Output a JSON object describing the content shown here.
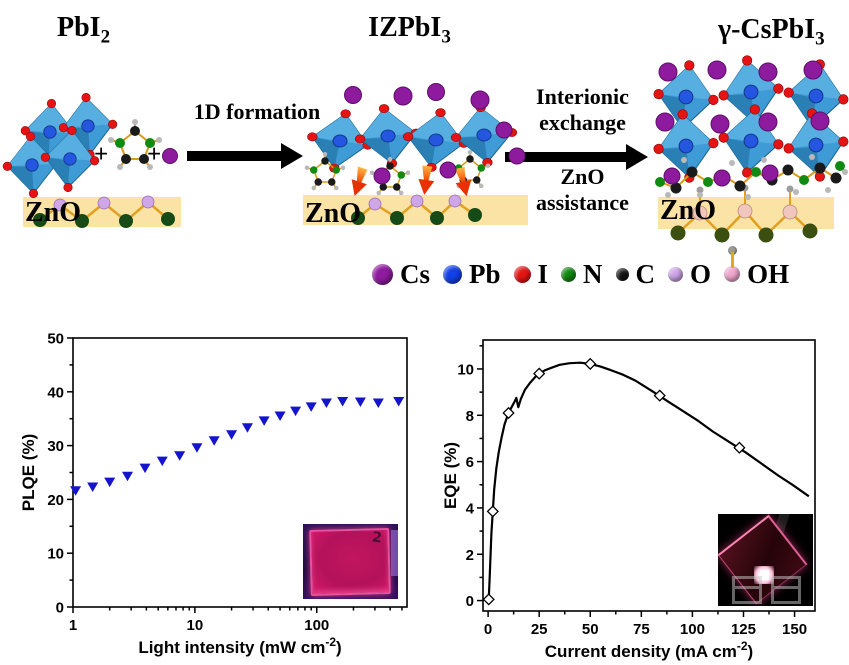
{
  "scheme": {
    "substrate_label": "ZnO",
    "plus": "+",
    "stages": [
      {
        "name": "PbI2",
        "main": "PbI",
        "sub": "2"
      },
      {
        "name": "IZPbI3",
        "main": "IZPbI",
        "sub": "3"
      },
      {
        "name": "gamma-CsPbI3",
        "main": "γ-CsPbI",
        "sub": "3"
      }
    ],
    "arrow1_label": "1D formation",
    "arrow2_label_line1": "Interionic",
    "arrow2_label_line2": "exchange",
    "arrow2_sub_line1": "ZnO",
    "arrow2_sub_line2": "assistance",
    "legend": [
      {
        "label": "Cs",
        "color": "#8e1b9e"
      },
      {
        "label": "Pb",
        "color": "#1340e8"
      },
      {
        "label": "I",
        "color": "#e81414"
      },
      {
        "label": "N",
        "color": "#118a11"
      },
      {
        "label": "C",
        "color": "#161616"
      },
      {
        "label": "O",
        "color": "#cfa6e8"
      },
      {
        "label": "OH",
        "color": "#f2a8cf"
      }
    ],
    "colors": {
      "octahedron": "#3f9bd6",
      "substrate_band": "#fae3a4",
      "bond": "#e0a020",
      "hydrogen": "#b0b0b0",
      "zinc_dark_green": "#164a16",
      "orange_arrow": "#ee3b00"
    }
  },
  "insets": {
    "left_label": "2"
  },
  "chart_data": [
    {
      "type": "scatter",
      "title": "",
      "xlabel": "Light intensity (mW cm^-2)",
      "xlabel_parts": {
        "pre": "Light intensity (mW cm",
        "sup": "-2",
        "post": ")"
      },
      "ylabel": "PLQE (%)",
      "xscale": "log",
      "xlim": [
        1,
        550
      ],
      "ylim": [
        0,
        50
      ],
      "xticks": [
        1,
        10,
        100
      ],
      "yticks": [
        0,
        10,
        20,
        30,
        40,
        50
      ],
      "yminor_step": 5,
      "grid": false,
      "marker": "triangle-down",
      "marker_color": "#1414cc",
      "x": [
        1.05,
        1.45,
        2.0,
        2.8,
        3.9,
        5.4,
        7.5,
        10.4,
        14.4,
        20,
        27,
        37,
        50,
        67,
        90,
        120,
        163,
        228,
        320,
        470
      ],
      "y": [
        21.7,
        22.4,
        23.3,
        24.4,
        25.9,
        27.2,
        28.2,
        29.7,
        31.0,
        32.1,
        33.4,
        34.7,
        35.6,
        36.5,
        37.3,
        38.0,
        38.3,
        38.2,
        38.0,
        38.3
      ]
    },
    {
      "type": "line",
      "title": "",
      "xlabel": "Current density (mA cm^-2)",
      "xlabel_parts": {
        "pre": "Current density (mA cm",
        "sup": "-2",
        "post": ")"
      },
      "ylabel": "EQE (%)",
      "xscale": "linear",
      "xlim": [
        -2.5,
        160
      ],
      "ylim": [
        -0.45,
        11.25
      ],
      "xticks": [
        0,
        25,
        50,
        75,
        100,
        125,
        150
      ],
      "yticks": [
        0,
        2,
        4,
        6,
        8,
        10
      ],
      "xminor_step": 12.5,
      "yminor_step": 1,
      "grid": false,
      "line_color": "#000000",
      "x": [
        0.3,
        0.7,
        1.1,
        1.6,
        2.3,
        3.0,
        4.0,
        5.2,
        6.5,
        8.0,
        10,
        11.5,
        13,
        13.8,
        14.8,
        16,
        18,
        20.5,
        23,
        25,
        28,
        31,
        35,
        40,
        45,
        50,
        55,
        60,
        66,
        72,
        81,
        88,
        95,
        103,
        110,
        118,
        126,
        134,
        142,
        149,
        157
      ],
      "y": [
        0.05,
        0.8,
        1.8,
        2.9,
        3.85,
        4.8,
        5.7,
        6.4,
        7.0,
        7.6,
        8.1,
        8.35,
        8.6,
        8.75,
        8.35,
        8.7,
        9.1,
        9.4,
        9.65,
        9.8,
        9.95,
        10.05,
        10.18,
        10.25,
        10.27,
        10.22,
        10.1,
        9.95,
        9.75,
        9.5,
        9.0,
        8.6,
        8.2,
        7.75,
        7.3,
        6.85,
        6.4,
        5.9,
        5.4,
        5.0,
        4.5
      ],
      "marker": "diamond-open",
      "marker_x": [
        0.3,
        2.3,
        10,
        25,
        50,
        84,
        123
      ],
      "marker_y": [
        0.05,
        3.85,
        8.1,
        9.8,
        10.22,
        8.85,
        6.6
      ]
    }
  ]
}
